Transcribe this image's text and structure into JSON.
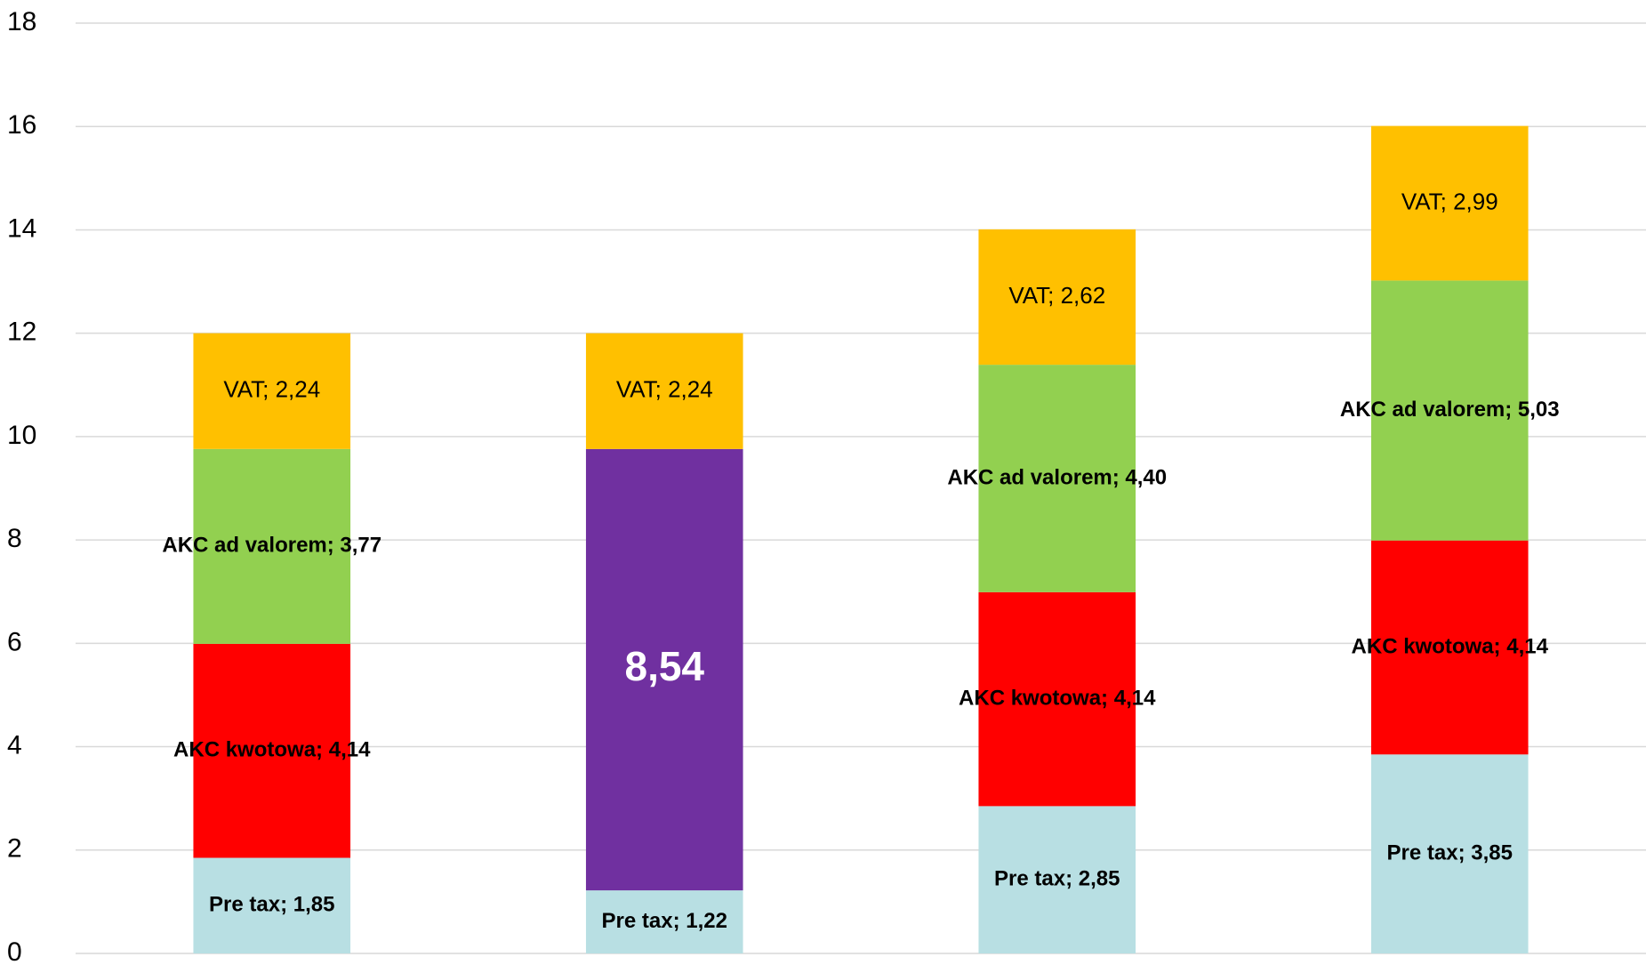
{
  "chart_data": {
    "type": "stacked_bar",
    "categories": [
      null,
      null,
      null,
      null
    ],
    "series": [
      {
        "name": "Pre tax",
        "color": "#b8dfe3",
        "values": [
          1.85,
          1.22,
          2.85,
          3.85
        ],
        "value_labels": [
          "Pre tax; 1,85",
          "Pre tax; 1,22",
          "Pre tax; 2,85",
          "Pre tax; 3,85"
        ]
      },
      {
        "name": "AKC kwotowa",
        "color": "#ff0000",
        "values": [
          4.14,
          null,
          4.14,
          4.14
        ],
        "value_labels": [
          "AKC kwotowa; 4,14",
          null,
          "AKC kwotowa; 4,14",
          "AKC kwotowa; 4,14"
        ]
      },
      {
        "color": "#7030a0",
        "values": [
          null,
          8.54,
          null,
          null
        ],
        "value_labels": [
          null,
          "8,54",
          null,
          null
        ]
      },
      {
        "name": "AKC ad valorem",
        "color": "#92d050",
        "values": [
          3.77,
          null,
          4.4,
          5.03
        ],
        "value_labels": [
          "AKC ad valorem; 3,77",
          null,
          "AKC ad valorem; 4,40",
          "AKC ad valorem; 5,03"
        ]
      },
      {
        "name": "VAT",
        "color": "#ffc000",
        "values": [
          2.24,
          2.24,
          2.62,
          2.99
        ],
        "value_labels": [
          "VAT; 2,24",
          "VAT; 2,24",
          "VAT; 2,62",
          "VAT; 2,99"
        ]
      }
    ],
    "ylim": [
      0,
      18
    ],
    "yticks": [
      0,
      2,
      4,
      6,
      8,
      10,
      12,
      14,
      16,
      18
    ],
    "grid": true
  }
}
